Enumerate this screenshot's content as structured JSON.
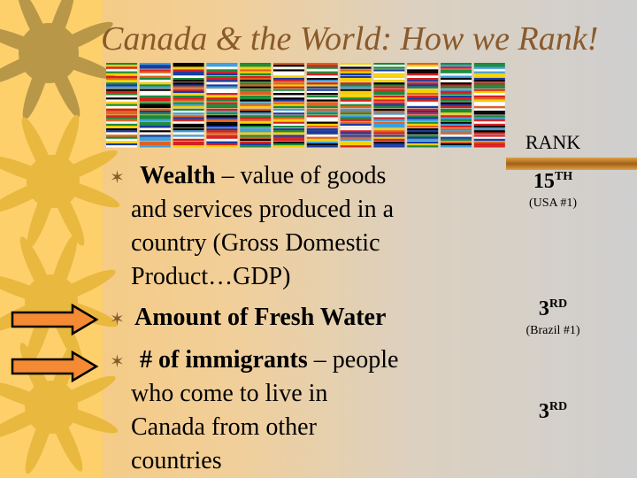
{
  "title": "Canada & the World: How we Rank!",
  "rank_header": "RANK",
  "items": [
    {
      "bold": "Wealth",
      "rest": " – value of goods",
      "lines": [
        "and services produced in a",
        "country (Gross Domestic",
        "Product…GDP)"
      ]
    },
    {
      "bold": "Amount of Fresh Water",
      "rest": "",
      "lines": []
    },
    {
      "bold": "# of immigrants",
      "rest": " – people",
      "lines": [
        "who come to live in",
        "Canada from other",
        "countries"
      ]
    }
  ],
  "ranks": [
    {
      "num": "15",
      "suffix": "TH",
      "note": "(USA #1)"
    },
    {
      "num": "3",
      "suffix": "RD",
      "note": "(Brazil #1)"
    },
    {
      "num": "3",
      "suffix": "RD",
      "note": ""
    }
  ],
  "highlighted_items": [
    "Amount of Fresh Water",
    "# of immigrants"
  ],
  "colors": {
    "title": "#8a5a2b",
    "band": "#fdd06c",
    "arrow": "#f58a34",
    "bullet": "#8a5a2b"
  }
}
